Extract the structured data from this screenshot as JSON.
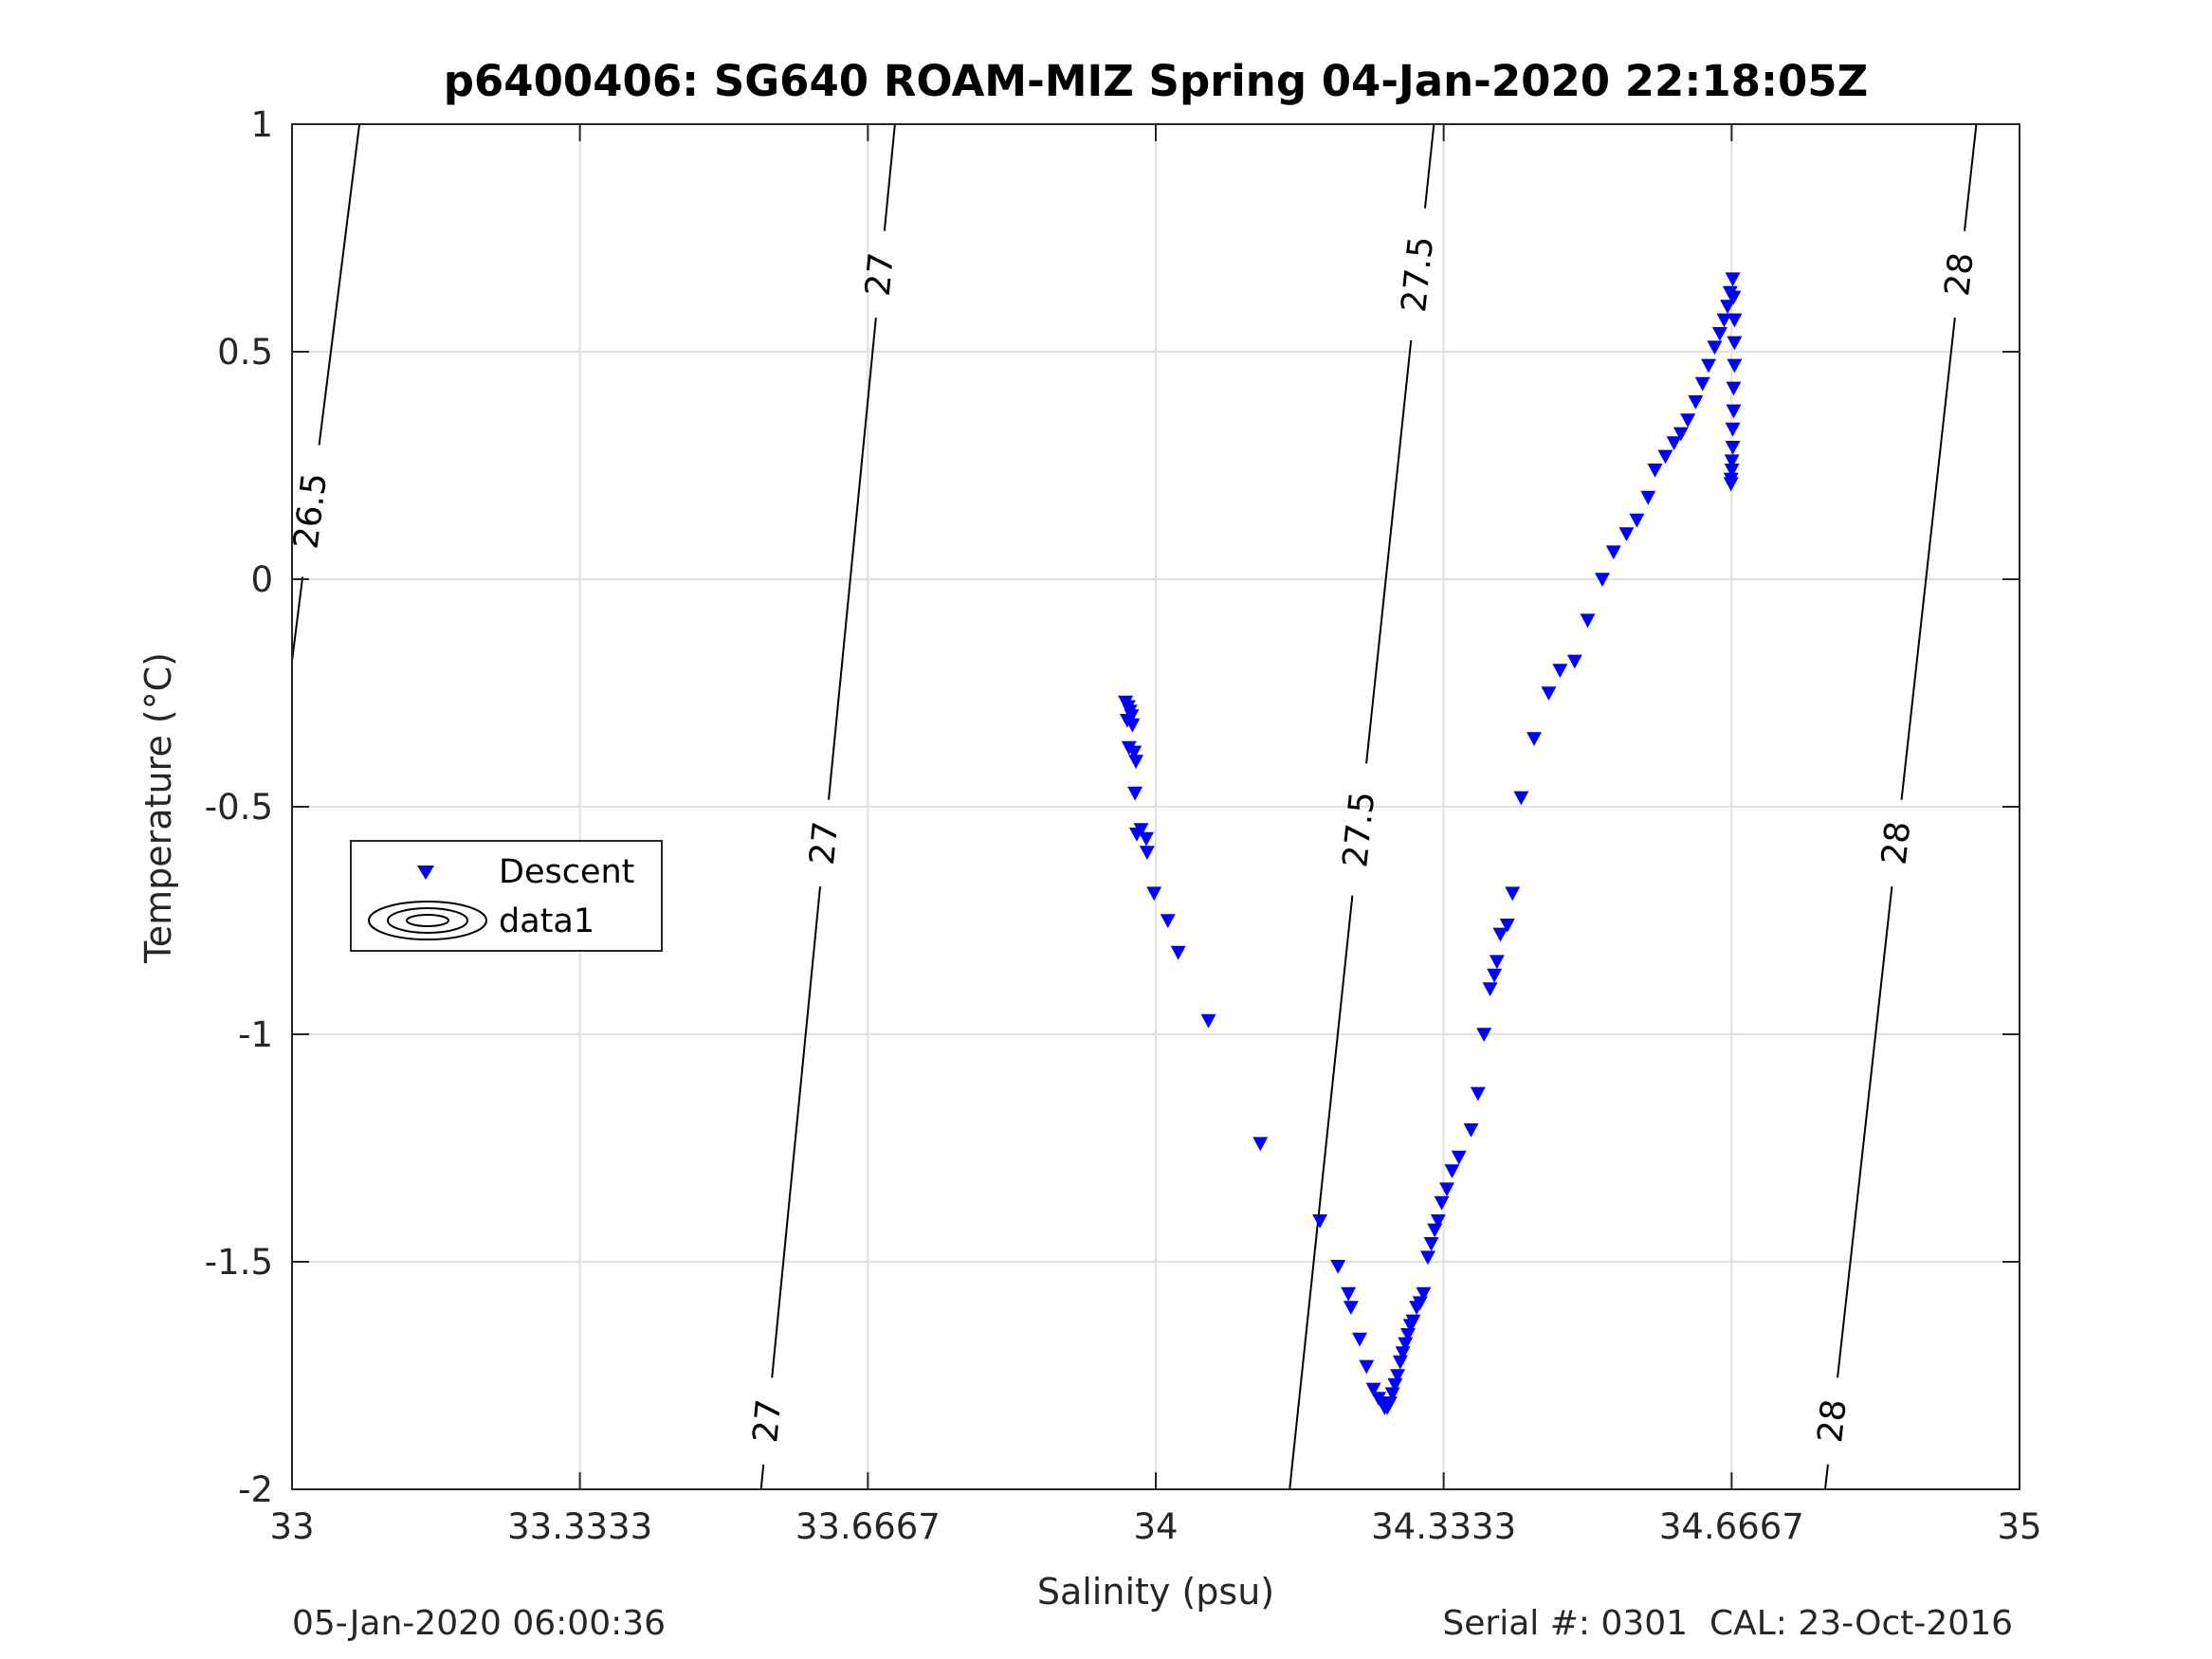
{
  "footer": {
    "timestamp": "05-Jan-2020 06:00:36",
    "serial": "Serial #: 0301  CAL: 23-Oct-2016"
  },
  "chart_data": {
    "type": "scatter",
    "title": "p6400406: SG640 ROAM-MIZ Spring 04-Jan-2020 22:18:05Z",
    "xlabel": "Salinity (psu)",
    "ylabel": "Temperature (°C)",
    "xlim": [
      33,
      35
    ],
    "ylim": [
      -2,
      1
    ],
    "xticks": [
      33,
      33.3333,
      33.6667,
      34,
      34.3333,
      34.6667,
      35
    ],
    "xtick_labels": [
      "33",
      "33.3333",
      "33.6667",
      "34",
      "34.3333",
      "34.6667",
      "35"
    ],
    "yticks": [
      1,
      0.5,
      0,
      -0.5,
      -1,
      -1.5,
      -2
    ],
    "ytick_labels": [
      "1",
      "0.5",
      "0",
      "-0.5",
      "-1",
      "-1.5",
      "-2"
    ],
    "grid": true,
    "legend": {
      "position": "middle-left",
      "entries": [
        "Descent",
        "data1"
      ]
    },
    "series": [
      {
        "name": "Descent",
        "color": "#0000ff",
        "marker": "triangle-down",
        "x": [
          33.965,
          33.968,
          33.97,
          33.972,
          33.967,
          33.973,
          33.969,
          33.975,
          33.977,
          33.976,
          33.983,
          33.978,
          33.989,
          33.99,
          33.998,
          34.014,
          34.026,
          34.061,
          34.121,
          34.19,
          34.211,
          34.223,
          34.226,
          34.236,
          34.244,
          34.252,
          34.258,
          34.262,
          34.265,
          34.268,
          34.271,
          34.274,
          34.277,
          34.28,
          34.283,
          34.286,
          34.289,
          34.292,
          34.295,
          34.298,
          34.302,
          34.306,
          34.31,
          34.315,
          34.319,
          34.323,
          34.327,
          34.331,
          34.337,
          34.343,
          34.351,
          34.365,
          34.373,
          34.38,
          34.387,
          34.392,
          34.395,
          34.399,
          34.407,
          34.413,
          34.423,
          34.438,
          34.455,
          34.468,
          34.485,
          34.5,
          34.517,
          34.53,
          34.545,
          34.557,
          34.57,
          34.578,
          34.59,
          34.6,
          34.608,
          34.616,
          34.625,
          34.633,
          34.64,
          34.647,
          34.653,
          34.658,
          34.662,
          34.665,
          34.668,
          34.669,
          34.67,
          34.67,
          34.67,
          34.669,
          34.669,
          34.668,
          34.668,
          34.667,
          34.667,
          34.666,
          34.666
        ],
        "y": [
          -0.27,
          -0.28,
          -0.29,
          -0.3,
          -0.31,
          -0.32,
          -0.37,
          -0.38,
          -0.4,
          -0.47,
          -0.55,
          -0.56,
          -0.57,
          -0.6,
          -0.69,
          -0.75,
          -0.82,
          -0.97,
          -1.24,
          -1.41,
          -1.51,
          -1.57,
          -1.6,
          -1.67,
          -1.73,
          -1.78,
          -1.8,
          -1.81,
          -1.82,
          -1.82,
          -1.81,
          -1.79,
          -1.77,
          -1.75,
          -1.72,
          -1.7,
          -1.68,
          -1.66,
          -1.64,
          -1.63,
          -1.6,
          -1.59,
          -1.57,
          -1.49,
          -1.46,
          -1.43,
          -1.41,
          -1.37,
          -1.34,
          -1.3,
          -1.27,
          -1.21,
          -1.13,
          -1.0,
          -0.9,
          -0.87,
          -0.84,
          -0.78,
          -0.76,
          -0.69,
          -0.48,
          -0.35,
          -0.25,
          -0.2,
          -0.18,
          -0.09,
          0.0,
          0.06,
          0.1,
          0.13,
          0.18,
          0.24,
          0.27,
          0.3,
          0.32,
          0.35,
          0.39,
          0.43,
          0.47,
          0.51,
          0.54,
          0.57,
          0.6,
          0.63,
          0.66,
          0.62,
          0.57,
          0.52,
          0.47,
          0.42,
          0.37,
          0.33,
          0.29,
          0.26,
          0.24,
          0.22,
          0.21
        ]
      },
      {
        "name": "data1",
        "type": "contour",
        "color": "#000000",
        "lines": [
          {
            "level": "26.5",
            "x": [
              33.0,
              33.078
            ],
            "y": [
              -0.18,
              1.0
            ],
            "label_y": [
              0.15
            ]
          },
          {
            "level": "27",
            "x": [
              33.543,
              33.698
            ],
            "y": [
              -2.0,
              1.0
            ],
            "label_y": [
              -1.85,
              -0.58,
              0.67
            ]
          },
          {
            "level": "27.5",
            "x": [
              34.155,
              34.322
            ],
            "y": [
              -2.0,
              1.0
            ],
            "label_y": [
              -0.55,
              0.67
            ]
          },
          {
            "level": "28",
            "x": [
              34.775,
              34.95
            ],
            "y": [
              -2.0,
              1.0
            ],
            "label_y": [
              -1.85,
              -0.58,
              0.67
            ]
          }
        ]
      }
    ]
  }
}
